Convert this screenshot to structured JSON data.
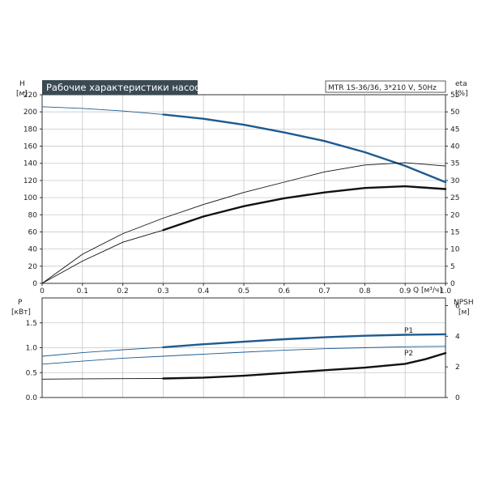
{
  "title": "Рабочие характеристики насоса",
  "model": "MTR 1S-36/36, 3*210 V, 50Hz",
  "colors": {
    "blue": "#1f5a8f",
    "black": "#111111",
    "grid": "#c8c8c8",
    "title_bg": "#3b4a52"
  },
  "chart_data": [
    {
      "type": "line",
      "name": "head-efficiency",
      "xlabel": "Q [м³/ч]",
      "ylabel_left": "H",
      "ylabel_left_unit": "[м]",
      "ylabel_right": "eta",
      "ylabel_right_unit": "[%]",
      "xlim": [
        0,
        1.0
      ],
      "ylim_left": [
        0,
        220
      ],
      "ylim_right": [
        0,
        55
      ],
      "x_ticks": [
        "0",
        "0.1",
        "0.2",
        "0.3",
        "0.4",
        "0.5",
        "0.6",
        "0.7",
        "0.8",
        "0.9",
        "1.0"
      ],
      "y_left_ticks": [
        "0",
        "20",
        "40",
        "60",
        "80",
        "100",
        "120",
        "140",
        "160",
        "180",
        "200",
        "220"
      ],
      "y_right_ticks": [
        "0",
        "5",
        "10",
        "15",
        "20",
        "25",
        "30",
        "35",
        "40",
        "45",
        "50",
        "55"
      ],
      "series": [
        {
          "key": "H",
          "axis": "left",
          "color": "#1f5a8f",
          "thin": {
            "x": [
              0,
              0.1,
              0.2,
              0.3
            ],
            "y": [
              206,
              204,
              201,
              197
            ]
          },
          "thick": {
            "x": [
              0.3,
              0.4,
              0.5,
              0.6,
              0.7,
              0.8,
              0.9,
              1.0
            ],
            "y": [
              197,
              192,
              185,
              176,
              166,
              153,
              137,
              118
            ]
          }
        },
        {
          "key": "eta",
          "axis": "right",
          "color": "#111111",
          "thin": {
            "x": [
              0,
              0.1,
              0.2,
              0.3
            ],
            "y": [
              0,
              6.5,
              12,
              15.5
            ]
          },
          "thick": {
            "x": [
              0.3,
              0.4,
              0.5,
              0.6,
              0.7,
              0.8,
              0.9,
              1.0
            ],
            "y": [
              15.5,
              19.5,
              22.5,
              24.8,
              26.5,
              27.8,
              28.3,
              27.5
            ]
          }
        },
        {
          "key": "eta_total",
          "axis": "right",
          "color": "#111111",
          "thin": {
            "x": [
              0,
              0.1,
              0.2,
              0.3,
              0.4,
              0.5,
              0.6,
              0.7,
              0.8,
              0.9,
              1.0
            ],
            "y": [
              0,
              8.5,
              14.5,
              19,
              23,
              26.5,
              29.5,
              32.5,
              34.5,
              35.2,
              34.2
            ]
          }
        }
      ]
    },
    {
      "type": "line",
      "name": "power-npsh",
      "xlabel": "",
      "ylabel_left": "P",
      "ylabel_left_unit": "[кВт]",
      "ylabel_right": "NPSH",
      "ylabel_right_unit": "[м]",
      "xlim": [
        0,
        1.0
      ],
      "ylim_left": [
        0,
        2.0
      ],
      "ylim_right": [
        0,
        6.5
      ],
      "y_left_ticks": [
        {
          "label": "0.0",
          "value": 0
        },
        {
          "label": "0.5",
          "value": 0.5
        },
        {
          "label": "1.0",
          "value": 1.0
        },
        {
          "label": "1.5",
          "value": 1.5
        }
      ],
      "y_right_ticks": [
        {
          "label": "0",
          "value": 0
        },
        {
          "label": "2",
          "value": 2
        },
        {
          "label": "4",
          "value": 4
        },
        {
          "label": "6",
          "value": 6
        }
      ],
      "series": [
        {
          "name": "P1",
          "axis": "left",
          "color": "#1f5a8f",
          "thin": {
            "x": [
              0,
              0.1,
              0.2,
              0.3
            ],
            "y": [
              0.83,
              0.9,
              0.96,
              1.01
            ]
          },
          "thick": {
            "x": [
              0.3,
              0.4,
              0.5,
              0.6,
              0.7,
              0.8,
              0.9,
              1.0
            ],
            "y": [
              1.01,
              1.07,
              1.12,
              1.17,
              1.21,
              1.24,
              1.26,
              1.27
            ]
          }
        },
        {
          "name": "P2",
          "axis": "left",
          "color": "#1f5a8f",
          "thin": {
            "x": [
              0,
              0.1,
              0.2,
              0.3,
              0.4,
              0.5,
              0.6,
              0.7,
              0.8,
              0.9,
              1.0
            ],
            "y": [
              0.67,
              0.73,
              0.79,
              0.83,
              0.87,
              0.91,
              0.95,
              0.98,
              1.0,
              1.02,
              1.03
            ]
          }
        },
        {
          "key": "NPSH",
          "axis": "right",
          "color": "#111111",
          "thin": {
            "x": [
              0,
              0.1,
              0.2,
              0.3
            ],
            "y": [
              1.2,
              1.22,
              1.23,
              1.24
            ]
          },
          "thick": {
            "x": [
              0.3,
              0.4,
              0.5,
              0.6,
              0.7,
              0.8,
              0.9,
              0.95,
              1.0
            ],
            "y": [
              1.24,
              1.3,
              1.42,
              1.6,
              1.78,
              1.95,
              2.2,
              2.5,
              2.9
            ]
          }
        }
      ]
    }
  ]
}
